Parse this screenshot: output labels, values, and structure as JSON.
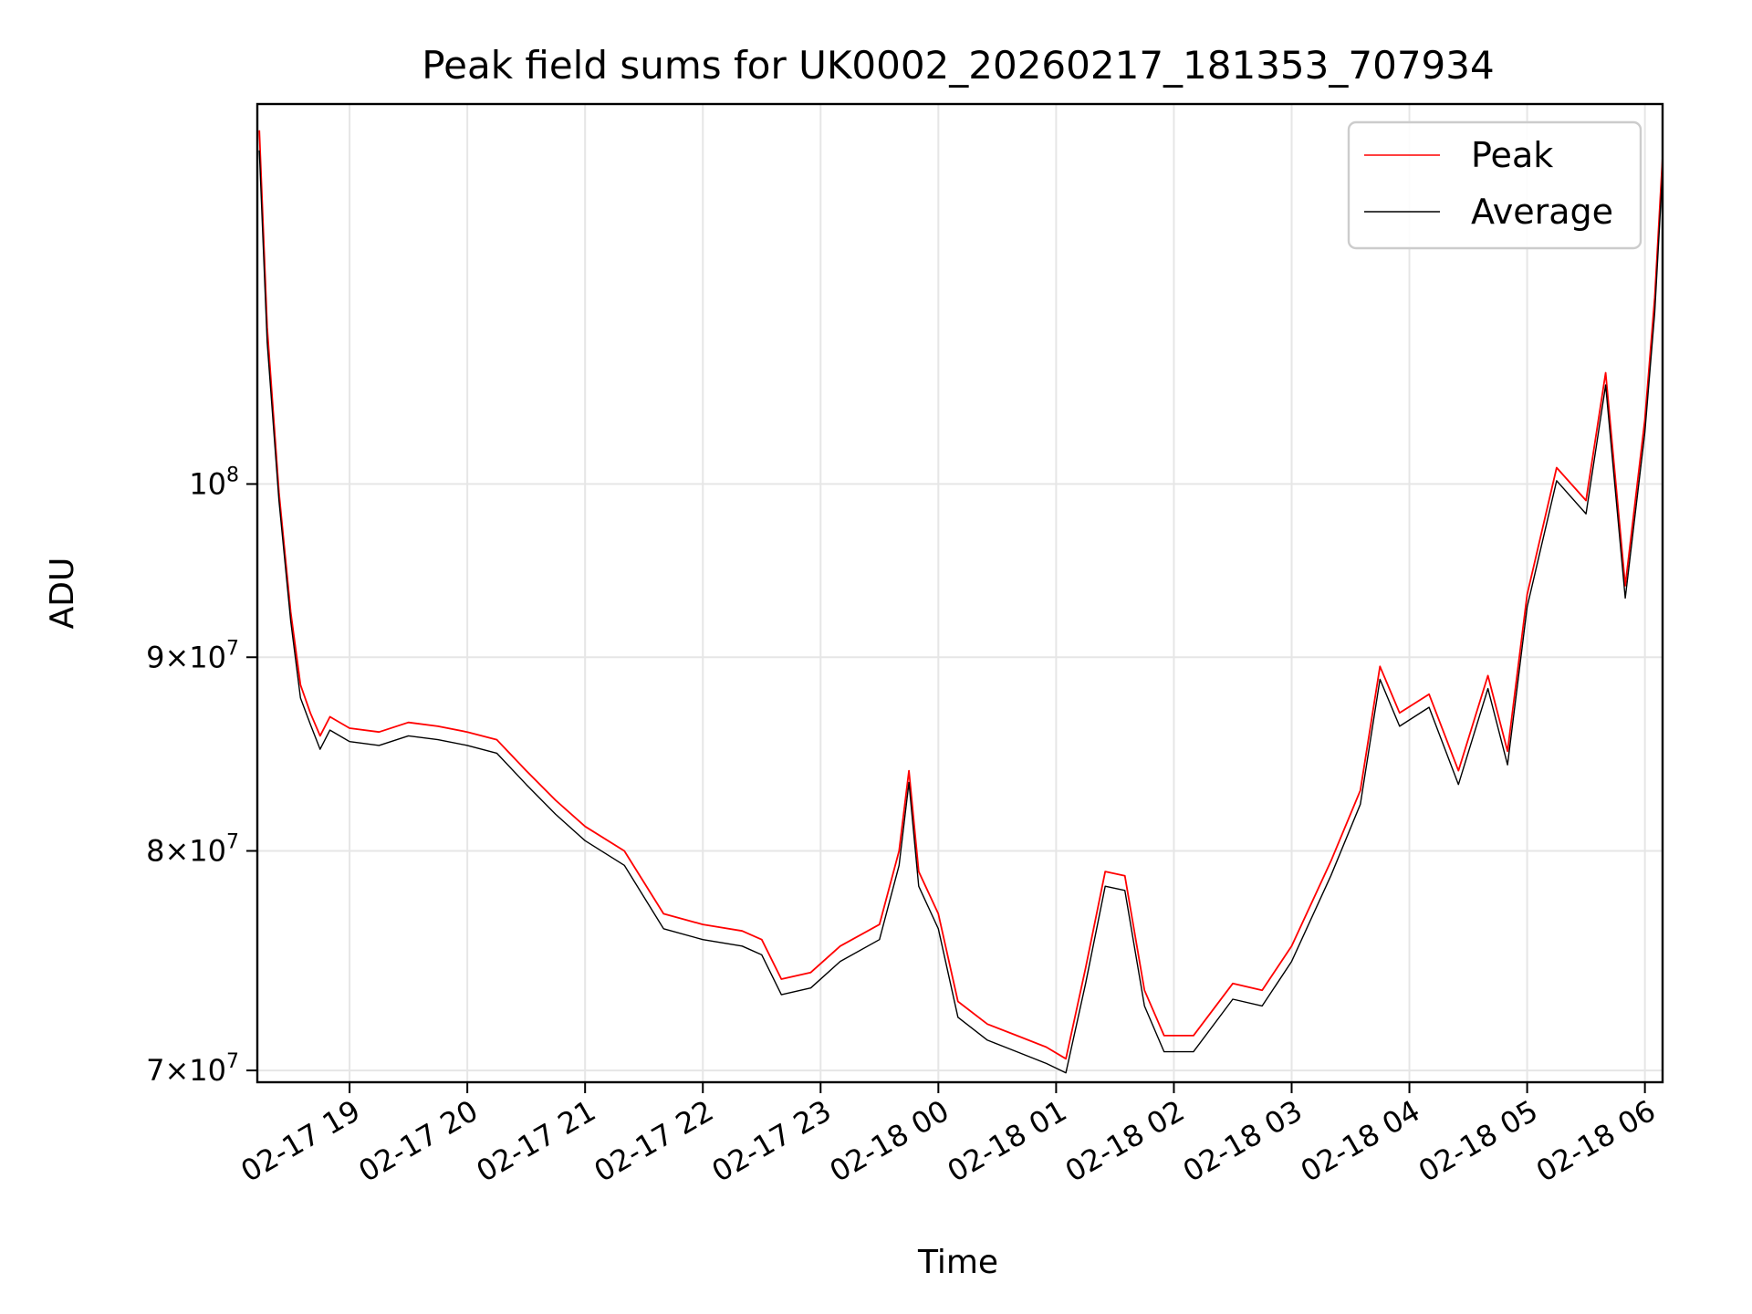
{
  "chart_data": {
    "type": "line",
    "title": "Peak field sums for UK0002_20260217_181353_707934",
    "xlabel": "Time",
    "ylabel": "ADU",
    "yscale": "log",
    "grid": true,
    "legend_position": "top-right",
    "xlim": [
      "2026-02-17 18:13",
      "2026-02-18 06:09"
    ],
    "ylim": [
      69500000,
      126000000
    ],
    "x_ticks": [
      "02-17 19",
      "02-17 20",
      "02-17 21",
      "02-17 22",
      "02-17 23",
      "02-18 00",
      "02-18 01",
      "02-18 02",
      "02-18 03",
      "02-18 04",
      "02-18 05",
      "02-18 06"
    ],
    "y_ticks": [
      {
        "value": 70000000,
        "mantissa": "7",
        "exponent": "7"
      },
      {
        "value": 80000000,
        "mantissa": "8",
        "exponent": "7"
      },
      {
        "value": 90000000,
        "mantissa": "9",
        "exponent": "7"
      },
      {
        "value": 100000000,
        "mantissa": "",
        "exponent": "8"
      }
    ],
    "x": [
      "2026-02-17 18:14",
      "2026-02-17 18:18",
      "2026-02-17 18:24",
      "2026-02-17 18:30",
      "2026-02-17 18:35",
      "2026-02-17 18:40",
      "2026-02-17 18:45",
      "2026-02-17 18:50",
      "2026-02-17 19:00",
      "2026-02-17 19:15",
      "2026-02-17 19:30",
      "2026-02-17 19:45",
      "2026-02-17 20:00",
      "2026-02-17 20:15",
      "2026-02-17 20:30",
      "2026-02-17 20:45",
      "2026-02-17 21:00",
      "2026-02-17 21:20",
      "2026-02-17 21:40",
      "2026-02-17 22:00",
      "2026-02-17 22:20",
      "2026-02-17 22:30",
      "2026-02-17 22:40",
      "2026-02-17 22:55",
      "2026-02-17 23:10",
      "2026-02-17 23:30",
      "2026-02-17 23:40",
      "2026-02-17 23:45",
      "2026-02-17 23:50",
      "2026-02-18 00:00",
      "2026-02-18 00:10",
      "2026-02-18 00:25",
      "2026-02-18 00:40",
      "2026-02-18 00:55",
      "2026-02-18 01:05",
      "2026-02-18 01:15",
      "2026-02-18 01:25",
      "2026-02-18 01:35",
      "2026-02-18 01:45",
      "2026-02-18 01:55",
      "2026-02-18 02:10",
      "2026-02-18 02:30",
      "2026-02-18 02:45",
      "2026-02-18 03:00",
      "2026-02-18 03:20",
      "2026-02-18 03:35",
      "2026-02-18 03:45",
      "2026-02-18 03:55",
      "2026-02-18 04:10",
      "2026-02-18 04:25",
      "2026-02-18 04:40",
      "2026-02-18 04:50",
      "2026-02-18 05:00",
      "2026-02-18 05:15",
      "2026-02-18 05:30",
      "2026-02-18 05:40",
      "2026-02-18 05:50",
      "2026-02-18 06:00",
      "2026-02-18 06:05",
      "2026-02-18 06:09"
    ],
    "series": [
      {
        "name": "Peak",
        "color": "#ff0000",
        "values": [
          124000000,
          110000000,
          99500000,
          92500000,
          88500000,
          87000000,
          85800000,
          86800000,
          86200000,
          86000000,
          86500000,
          86300000,
          86000000,
          85600000,
          84000000,
          82500000,
          81200000,
          80000000,
          77000000,
          76500000,
          76200000,
          75800000,
          74000000,
          74300000,
          75500000,
          76500000,
          80000000,
          84000000,
          79000000,
          77000000,
          73000000,
          72000000,
          71500000,
          71000000,
          70500000,
          74500000,
          79000000,
          78800000,
          73500000,
          71500000,
          71500000,
          73800000,
          73500000,
          75500000,
          79500000,
          83000000,
          89500000,
          87000000,
          88000000,
          84000000,
          89000000,
          85000000,
          93500000,
          101000000,
          99000000,
          107000000,
          94000000,
          104000000,
          112000000,
          122000000
        ]
      },
      {
        "name": "Average",
        "color": "#000000",
        "values": [
          122500000,
          109000000,
          99000000,
          92000000,
          87800000,
          86400000,
          85100000,
          86100000,
          85500000,
          85300000,
          85800000,
          85600000,
          85300000,
          84900000,
          83300000,
          81800000,
          80500000,
          79300000,
          76300000,
          75800000,
          75500000,
          75100000,
          73300000,
          73600000,
          74800000,
          75800000,
          79300000,
          83400000,
          78300000,
          76300000,
          72300000,
          71300000,
          70800000,
          70300000,
          69900000,
          73800000,
          78300000,
          78100000,
          72800000,
          70800000,
          70800000,
          73100000,
          72800000,
          74800000,
          78800000,
          82300000,
          88800000,
          86300000,
          87300000,
          83300000,
          88300000,
          84300000,
          92800000,
          100200000,
          98200000,
          106200000,
          93300000,
          103200000,
          111000000,
          121000000
        ]
      }
    ]
  }
}
